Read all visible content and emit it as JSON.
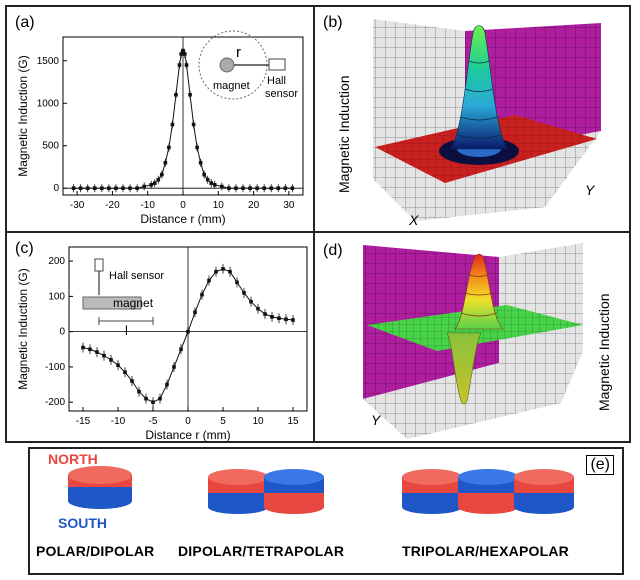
{
  "panels": {
    "a": {
      "label": "(a)",
      "inset": {
        "r": "r",
        "magnet": "magnet",
        "sensor_line1": "Hall",
        "sensor_line2": "sensor"
      }
    },
    "b": {
      "label": "(b)",
      "ylabel": "Magnetic Induction",
      "axis_x": "X",
      "axis_y": "Y"
    },
    "c": {
      "label": "(c)",
      "inset": {
        "sensor": "Hall sensor",
        "magnet": "magnet",
        "length": "l"
      }
    },
    "d": {
      "label": "(d)",
      "ylabel": "Magnetic Induction",
      "axis_y": "Y"
    },
    "e": {
      "label": "(e)",
      "north": "NORTH",
      "south": "SOUTH",
      "captions": [
        "POLAR/DIPOLAR",
        "DIPOLAR/TETRAPOLAR",
        "TRIPOLAR/HEXAPOLAR"
      ],
      "colors": {
        "north": "#e8473f",
        "south": "#1f57c8"
      }
    }
  },
  "chart_data": [
    {
      "id": "a",
      "type": "scatter",
      "title": "",
      "xlabel": "Distance r (mm)",
      "ylabel": "Magnetic Induction (G)",
      "xlim": [
        -34,
        34
      ],
      "ylim": [
        -80,
        1780
      ],
      "xticks": [
        -30,
        -20,
        -10,
        0,
        10,
        20,
        30
      ],
      "yticks": [
        0,
        500,
        1000,
        1500
      ],
      "x": [
        -31,
        -29,
        -27,
        -25,
        -23,
        -21,
        -19,
        -17,
        -15,
        -13,
        -11,
        -9,
        -8,
        -7,
        -6,
        -5,
        -4,
        -3,
        -2,
        -1,
        -0.5,
        0,
        0.5,
        1,
        2,
        3,
        4,
        5,
        6,
        7,
        8,
        9,
        11,
        13,
        15,
        17,
        19,
        21,
        23,
        25,
        27,
        29,
        31
      ],
      "y": [
        0,
        0,
        0,
        0,
        0,
        0,
        0,
        0,
        0,
        0,
        20,
        40,
        60,
        100,
        160,
        300,
        480,
        750,
        1100,
        1450,
        1580,
        1620,
        1580,
        1450,
        1100,
        750,
        480,
        300,
        160,
        100,
        60,
        40,
        20,
        0,
        0,
        0,
        0,
        0,
        0,
        0,
        0,
        0,
        0
      ]
    },
    {
      "id": "c",
      "type": "scatter",
      "title": "",
      "xlabel": "Distance r (mm)",
      "ylabel": "Magnetic Induction (G)",
      "xlim": [
        -17,
        17
      ],
      "ylim": [
        -225,
        240
      ],
      "xticks": [
        -15,
        -10,
        -5,
        0,
        5,
        10,
        15
      ],
      "yticks": [
        -200,
        -100,
        0,
        100,
        200
      ],
      "x": [
        -15,
        -14,
        -13,
        -12,
        -11,
        -10,
        -9,
        -8,
        -7,
        -6,
        -5,
        -4,
        -3,
        -2,
        -1,
        0,
        1,
        2,
        3,
        4,
        5,
        6,
        7,
        8,
        9,
        10,
        11,
        12,
        13,
        14,
        15
      ],
      "y": [
        -45,
        -50,
        -58,
        -68,
        -80,
        -95,
        -115,
        -140,
        -170,
        -190,
        -200,
        -190,
        -150,
        -100,
        -50,
        0,
        55,
        105,
        145,
        170,
        178,
        170,
        140,
        110,
        85,
        65,
        50,
        42,
        38,
        35,
        33
      ]
    }
  ]
}
